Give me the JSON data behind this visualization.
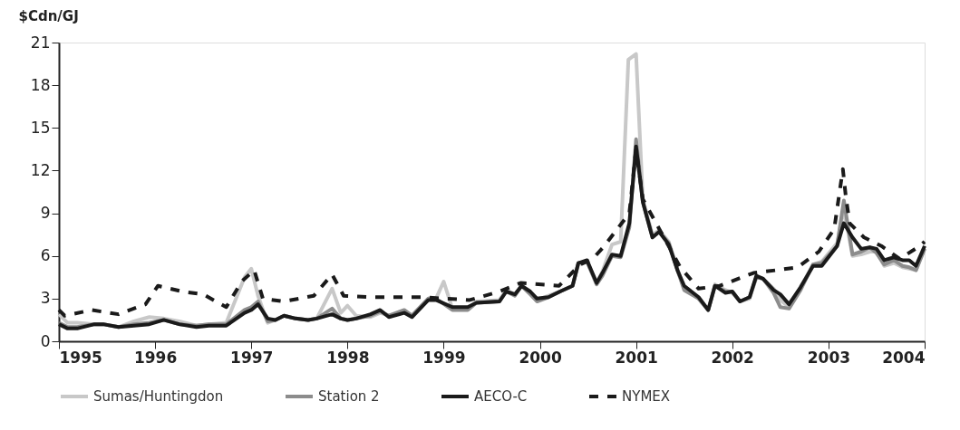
{
  "chart_data": {
    "type": "line",
    "ylabel": "$Cdn/GJ",
    "xlim": [
      1995,
      2004
    ],
    "xticks": [
      1995,
      1996,
      1997,
      1998,
      1999,
      2000,
      2001,
      2002,
      2003,
      2004
    ],
    "ylim": [
      0,
      21
    ],
    "yticks": [
      0,
      3,
      6,
      9,
      12,
      15,
      18,
      21
    ],
    "grid": false,
    "legend": "bottom",
    "series": [
      {
        "name": "Sumas/Huntingdon",
        "color": "#c8c8c8",
        "line_style": "solid",
        "x": [
          1995.0,
          1995.09,
          1995.19,
          1995.37,
          1995.46,
          1995.62,
          1995.78,
          1995.94,
          1996.09,
          1996.25,
          1996.43,
          1996.56,
          1996.74,
          1996.93,
          1997.0,
          1997.07,
          1997.17,
          1997.25,
          1997.34,
          1997.46,
          1997.59,
          1997.68,
          1997.84,
          1997.93,
          1998.0,
          1998.09,
          1998.24,
          1998.34,
          1998.43,
          1998.59,
          1998.67,
          1998.84,
          1998.92,
          1999.0,
          1999.09,
          1999.25,
          1999.34,
          1999.58,
          1999.65,
          1999.74,
          1999.81,
          1999.9,
          1999.97,
          2000.09,
          2000.21,
          2000.34,
          2000.4,
          2000.49,
          2000.59,
          2000.65,
          2000.75,
          2000.84,
          2000.92,
          2001.0,
          2001.07,
          2001.17,
          2001.24,
          2001.34,
          2001.43,
          2001.5,
          2001.65,
          2001.75,
          2001.82,
          2001.93,
          2002.0,
          2002.08,
          2002.18,
          2002.25,
          2002.32,
          2002.43,
          2002.5,
          2002.59,
          2002.71,
          2002.84,
          2002.93,
          2003.09,
          2003.16,
          2003.25,
          2003.34,
          2003.43,
          2003.5,
          2003.58,
          2003.68,
          2003.77,
          2003.84,
          2003.91,
          2004.0
        ],
        "values": [
          1.9,
          1.3,
          1.3,
          1.2,
          1.2,
          1.0,
          1.4,
          1.7,
          1.6,
          1.4,
          1.1,
          1.2,
          1.3,
          4.5,
          5.1,
          3.2,
          1.3,
          1.5,
          1.8,
          1.6,
          1.5,
          1.6,
          3.7,
          2.0,
          2.5,
          1.8,
          1.7,
          2.0,
          1.8,
          2.1,
          1.8,
          3.0,
          3.0,
          4.2,
          2.3,
          2.3,
          2.8,
          2.9,
          3.6,
          3.3,
          3.9,
          3.4,
          2.9,
          3.2,
          3.5,
          3.9,
          5.4,
          5.6,
          4.1,
          4.9,
          6.8,
          7.0,
          19.8,
          20.2,
          10.0,
          7.5,
          7.8,
          7.0,
          5.1,
          3.7,
          3.0,
          2.2,
          4.0,
          3.6,
          3.4,
          2.8,
          3.0,
          4.5,
          4.4,
          3.7,
          2.9,
          2.4,
          3.8,
          5.4,
          5.6,
          6.9,
          9.3,
          6.0,
          6.1,
          6.3,
          6.3,
          5.3,
          5.5,
          5.2,
          5.1,
          5.0,
          6.5
        ]
      },
      {
        "name": "Station 2",
        "color": "#8c8c8c",
        "line_style": "solid",
        "x": [
          1995.0,
          1995.09,
          1995.19,
          1995.37,
          1995.46,
          1995.62,
          1995.78,
          1995.94,
          1996.09,
          1996.25,
          1996.43,
          1996.56,
          1996.74,
          1996.93,
          1997.0,
          1997.07,
          1997.17,
          1997.25,
          1997.34,
          1997.46,
          1997.59,
          1997.68,
          1997.84,
          1997.93,
          1998.0,
          1998.09,
          1998.24,
          1998.34,
          1998.43,
          1998.59,
          1998.67,
          1998.84,
          1998.92,
          1999.09,
          1999.25,
          1999.34,
          1999.58,
          1999.65,
          1999.74,
          1999.81,
          1999.9,
          1999.97,
          2000.09,
          2000.21,
          2000.34,
          2000.4,
          2000.49,
          2000.59,
          2000.65,
          2000.75,
          2000.84,
          2000.93,
          2001.0,
          2001.07,
          2001.17,
          2001.24,
          2001.34,
          2001.43,
          2001.5,
          2001.65,
          2001.75,
          2001.82,
          2001.93,
          2002.0,
          2002.08,
          2002.18,
          2002.25,
          2002.32,
          2002.43,
          2002.5,
          2002.59,
          2002.71,
          2002.84,
          2002.93,
          2003.09,
          2003.16,
          2003.25,
          2003.34,
          2003.43,
          2003.5,
          2003.58,
          2003.68,
          2003.77,
          2003.84,
          2003.91,
          2004.0
        ],
        "values": [
          1.3,
          1.0,
          1.0,
          1.2,
          1.2,
          1.0,
          1.2,
          1.3,
          1.5,
          1.2,
          1.1,
          1.2,
          1.2,
          2.2,
          2.4,
          2.8,
          1.4,
          1.5,
          1.8,
          1.6,
          1.5,
          1.6,
          2.3,
          1.6,
          1.5,
          1.6,
          1.8,
          2.1,
          1.8,
          2.2,
          1.8,
          3.0,
          3.0,
          2.2,
          2.2,
          2.7,
          2.8,
          3.5,
          3.2,
          3.9,
          3.3,
          2.8,
          3.1,
          3.5,
          3.9,
          5.5,
          5.6,
          4.0,
          4.6,
          6.0,
          5.9,
          8.0,
          14.2,
          9.8,
          7.3,
          7.7,
          6.9,
          5.0,
          3.6,
          3.0,
          2.2,
          3.9,
          3.5,
          3.5,
          2.8,
          3.1,
          4.5,
          4.4,
          3.4,
          2.4,
          2.3,
          3.6,
          5.4,
          5.5,
          6.7,
          9.9,
          6.1,
          6.3,
          6.6,
          6.2,
          5.4,
          5.7,
          5.3,
          5.2,
          5.0,
          6.5
        ]
      },
      {
        "name": "AECO-C",
        "color": "#1a1a1a",
        "line_style": "solid",
        "x": [
          1995.0,
          1995.09,
          1995.19,
          1995.37,
          1995.46,
          1995.62,
          1995.78,
          1995.94,
          1996.09,
          1996.25,
          1996.43,
          1996.56,
          1996.74,
          1996.93,
          1997.0,
          1997.07,
          1997.17,
          1997.25,
          1997.34,
          1997.46,
          1997.59,
          1997.68,
          1997.84,
          1997.93,
          1998.0,
          1998.09,
          1998.24,
          1998.34,
          1998.43,
          1998.59,
          1998.67,
          1998.84,
          1998.92,
          1999.09,
          1999.25,
          1999.34,
          1999.58,
          1999.65,
          1999.74,
          1999.81,
          1999.9,
          1999.97,
          2000.09,
          2000.21,
          2000.34,
          2000.4,
          2000.49,
          2000.59,
          2000.65,
          2000.75,
          2000.84,
          2000.93,
          2001.0,
          2001.07,
          2001.17,
          2001.24,
          2001.34,
          2001.43,
          2001.5,
          2001.65,
          2001.75,
          2001.82,
          2001.93,
          2002.0,
          2002.08,
          2002.18,
          2002.25,
          2002.32,
          2002.43,
          2002.5,
          2002.59,
          2002.71,
          2002.84,
          2002.93,
          2003.09,
          2003.16,
          2003.25,
          2003.34,
          2003.43,
          2003.5,
          2003.58,
          2003.68,
          2003.77,
          2003.84,
          2003.91,
          2004.0
        ],
        "values": [
          1.2,
          0.9,
          0.9,
          1.2,
          1.2,
          1.0,
          1.1,
          1.2,
          1.5,
          1.2,
          1.0,
          1.1,
          1.1,
          2.0,
          2.2,
          2.6,
          1.6,
          1.5,
          1.8,
          1.6,
          1.5,
          1.6,
          1.9,
          1.6,
          1.5,
          1.6,
          1.9,
          2.2,
          1.7,
          2.0,
          1.7,
          2.9,
          2.9,
          2.4,
          2.4,
          2.7,
          2.8,
          3.5,
          3.3,
          3.9,
          3.5,
          3.0,
          3.1,
          3.5,
          3.9,
          5.5,
          5.7,
          4.1,
          4.8,
          6.1,
          6.0,
          8.3,
          13.7,
          9.8,
          7.3,
          7.7,
          6.8,
          5.0,
          3.9,
          3.1,
          2.2,
          3.9,
          3.4,
          3.5,
          2.8,
          3.1,
          4.6,
          4.4,
          3.6,
          3.3,
          2.6,
          3.8,
          5.3,
          5.3,
          6.7,
          8.3,
          7.3,
          6.5,
          6.6,
          6.5,
          5.7,
          5.9,
          5.7,
          5.7,
          5.3,
          6.7
        ]
      },
      {
        "name": "NYMEX",
        "color": "#1a1a1a",
        "line_style": "dashed",
        "x": [
          1995.0,
          1995.06,
          1995.34,
          1995.62,
          1995.9,
          1996.03,
          1996.28,
          1996.5,
          1996.74,
          1996.9,
          1997.03,
          1997.12,
          1997.34,
          1997.65,
          1997.84,
          1997.96,
          1998.27,
          1998.52,
          1998.77,
          1999.27,
          1999.58,
          1999.8,
          2000.2,
          2000.42,
          2000.55,
          2000.67,
          2000.93,
          2001.0,
          2001.07,
          2001.46,
          2001.65,
          2001.87,
          2002.22,
          2002.46,
          2002.68,
          2002.9,
          2003.06,
          2003.15,
          2003.18,
          2003.22,
          2003.37,
          2003.55,
          2003.74,
          2003.95,
          2004.0
        ],
        "values": [
          2.2,
          1.8,
          2.2,
          1.9,
          2.6,
          3.9,
          3.5,
          3.3,
          2.4,
          4.2,
          5.0,
          3.0,
          2.8,
          3.2,
          4.7,
          3.2,
          3.1,
          3.1,
          3.1,
          2.9,
          3.5,
          4.1,
          3.9,
          5.4,
          5.8,
          6.7,
          9.0,
          13.5,
          10.0,
          5.2,
          3.7,
          3.9,
          4.8,
          5.0,
          5.2,
          6.3,
          7.9,
          12.1,
          10.2,
          8.3,
          7.3,
          6.7,
          5.8,
          6.7,
          7.0
        ]
      }
    ]
  }
}
